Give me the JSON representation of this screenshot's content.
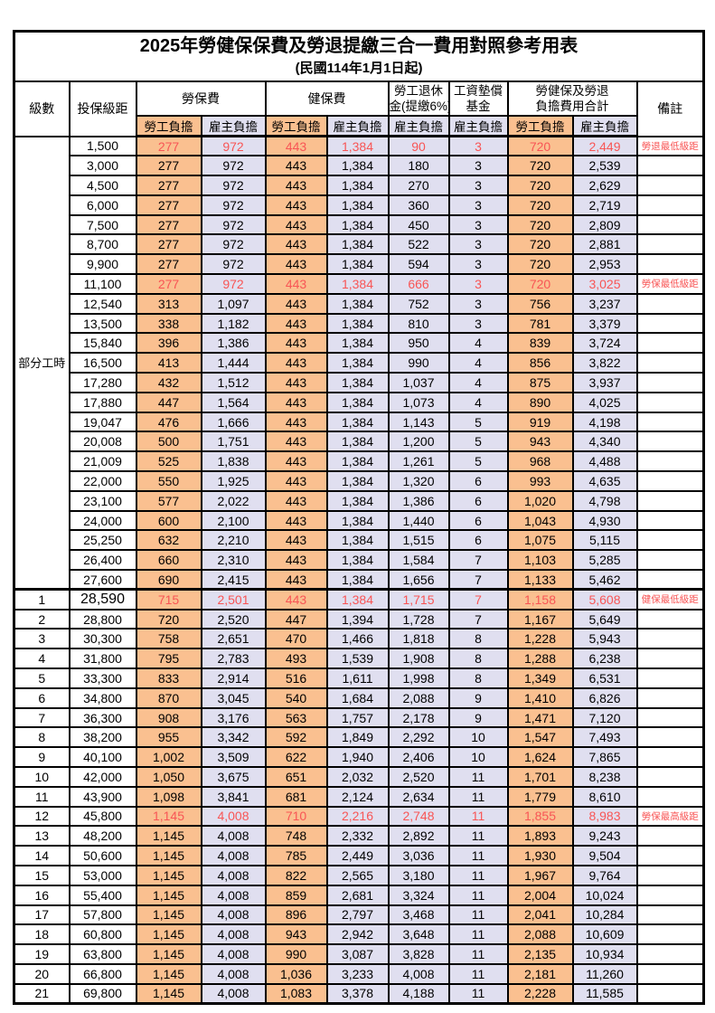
{
  "title": "2025年勞健保保費及勞退提繳三合一費用對照參考用表",
  "subtitle": "(民國114年1月1日起)",
  "colors": {
    "employee_bg": "#FAC090",
    "employer_bg": "#E0DFF0",
    "highlight_red": "#F85555",
    "border": "#000000"
  },
  "columns": {
    "level": "級數",
    "bracket": "投保級距",
    "labor": "勞保費",
    "health": "健保費",
    "pension_line1": "勞工退休",
    "pension_line2": "金(提繳6%)",
    "fund_line1": "工資墊償",
    "fund_line2": "基金",
    "total_line1": "勞健保及勞退",
    "total_line2": "負擔費用合計",
    "remark": "備註",
    "employee": "勞工負擔",
    "employer": "雇主負擔"
  },
  "part_time": {
    "label": "部分工時",
    "span": 23
  },
  "rows": [
    {
      "level": "",
      "wage": "1,500",
      "vals": [
        "277",
        "972",
        "443",
        "1,384",
        "90",
        "3",
        "720",
        "2,449"
      ],
      "note": "勞退最低級距",
      "red": true
    },
    {
      "level": "",
      "wage": "3,000",
      "vals": [
        "277",
        "972",
        "443",
        "1,384",
        "180",
        "3",
        "720",
        "2,539"
      ],
      "note": "",
      "red": false
    },
    {
      "level": "",
      "wage": "4,500",
      "vals": [
        "277",
        "972",
        "443",
        "1,384",
        "270",
        "3",
        "720",
        "2,629"
      ],
      "note": "",
      "red": false
    },
    {
      "level": "",
      "wage": "6,000",
      "vals": [
        "277",
        "972",
        "443",
        "1,384",
        "360",
        "3",
        "720",
        "2,719"
      ],
      "note": "",
      "red": false
    },
    {
      "level": "",
      "wage": "7,500",
      "vals": [
        "277",
        "972",
        "443",
        "1,384",
        "450",
        "3",
        "720",
        "2,809"
      ],
      "note": "",
      "red": false
    },
    {
      "level": "",
      "wage": "8,700",
      "vals": [
        "277",
        "972",
        "443",
        "1,384",
        "522",
        "3",
        "720",
        "2,881"
      ],
      "note": "",
      "red": false
    },
    {
      "level": "",
      "wage": "9,900",
      "vals": [
        "277",
        "972",
        "443",
        "1,384",
        "594",
        "3",
        "720",
        "2,953"
      ],
      "note": "",
      "red": false
    },
    {
      "level": "",
      "wage": "11,100",
      "vals": [
        "277",
        "972",
        "443",
        "1,384",
        "666",
        "3",
        "720",
        "3,025"
      ],
      "note": "勞保最低級距",
      "red": true
    },
    {
      "level": "",
      "wage": "12,540",
      "vals": [
        "313",
        "1,097",
        "443",
        "1,384",
        "752",
        "3",
        "756",
        "3,237"
      ],
      "note": "",
      "red": false
    },
    {
      "level": "",
      "wage": "13,500",
      "vals": [
        "338",
        "1,182",
        "443",
        "1,384",
        "810",
        "3",
        "781",
        "3,379"
      ],
      "note": "",
      "red": false
    },
    {
      "level": "",
      "wage": "15,840",
      "vals": [
        "396",
        "1,386",
        "443",
        "1,384",
        "950",
        "4",
        "839",
        "3,724"
      ],
      "note": "",
      "red": false
    },
    {
      "level": "",
      "wage": "16,500",
      "vals": [
        "413",
        "1,444",
        "443",
        "1,384",
        "990",
        "4",
        "856",
        "3,822"
      ],
      "note": "",
      "red": false
    },
    {
      "level": "",
      "wage": "17,280",
      "vals": [
        "432",
        "1,512",
        "443",
        "1,384",
        "1,037",
        "4",
        "875",
        "3,937"
      ],
      "note": "",
      "red": false
    },
    {
      "level": "",
      "wage": "17,880",
      "vals": [
        "447",
        "1,564",
        "443",
        "1,384",
        "1,073",
        "4",
        "890",
        "4,025"
      ],
      "note": "",
      "red": false
    },
    {
      "level": "",
      "wage": "19,047",
      "vals": [
        "476",
        "1,666",
        "443",
        "1,384",
        "1,143",
        "5",
        "919",
        "4,198"
      ],
      "note": "",
      "red": false
    },
    {
      "level": "",
      "wage": "20,008",
      "vals": [
        "500",
        "1,751",
        "443",
        "1,384",
        "1,200",
        "5",
        "943",
        "4,340"
      ],
      "note": "",
      "red": false
    },
    {
      "level": "",
      "wage": "21,009",
      "vals": [
        "525",
        "1,838",
        "443",
        "1,384",
        "1,261",
        "5",
        "968",
        "4,488"
      ],
      "note": "",
      "red": false
    },
    {
      "level": "",
      "wage": "22,000",
      "vals": [
        "550",
        "1,925",
        "443",
        "1,384",
        "1,320",
        "6",
        "993",
        "4,635"
      ],
      "note": "",
      "red": false
    },
    {
      "level": "",
      "wage": "23,100",
      "vals": [
        "577",
        "2,022",
        "443",
        "1,384",
        "1,386",
        "6",
        "1,020",
        "4,798"
      ],
      "note": "",
      "red": false
    },
    {
      "level": "",
      "wage": "24,000",
      "vals": [
        "600",
        "2,100",
        "443",
        "1,384",
        "1,440",
        "6",
        "1,043",
        "4,930"
      ],
      "note": "",
      "red": false
    },
    {
      "level": "",
      "wage": "25,250",
      "vals": [
        "632",
        "2,210",
        "443",
        "1,384",
        "1,515",
        "6",
        "1,075",
        "5,115"
      ],
      "note": "",
      "red": false
    },
    {
      "level": "",
      "wage": "26,400",
      "vals": [
        "660",
        "2,310",
        "443",
        "1,384",
        "1,584",
        "7",
        "1,103",
        "5,285"
      ],
      "note": "",
      "red": false
    },
    {
      "level": "",
      "wage": "27,600",
      "vals": [
        "690",
        "2,415",
        "443",
        "1,384",
        "1,656",
        "7",
        "1,133",
        "5,462"
      ],
      "note": "",
      "red": false
    },
    {
      "level": "1",
      "wage": "28,590",
      "vals": [
        "715",
        "2,501",
        "443",
        "1,384",
        "1,715",
        "7",
        "1,158",
        "5,608"
      ],
      "note": "健保最低級距",
      "red": true,
      "thick_top": true,
      "wage_large": true
    },
    {
      "level": "2",
      "wage": "28,800",
      "vals": [
        "720",
        "2,520",
        "447",
        "1,394",
        "1,728",
        "7",
        "1,167",
        "5,649"
      ],
      "note": "",
      "red": false
    },
    {
      "level": "3",
      "wage": "30,300",
      "vals": [
        "758",
        "2,651",
        "470",
        "1,466",
        "1,818",
        "8",
        "1,228",
        "5,943"
      ],
      "note": "",
      "red": false
    },
    {
      "level": "4",
      "wage": "31,800",
      "vals": [
        "795",
        "2,783",
        "493",
        "1,539",
        "1,908",
        "8",
        "1,288",
        "6,238"
      ],
      "note": "",
      "red": false
    },
    {
      "level": "5",
      "wage": "33,300",
      "vals": [
        "833",
        "2,914",
        "516",
        "1,611",
        "1,998",
        "8",
        "1,349",
        "6,531"
      ],
      "note": "",
      "red": false
    },
    {
      "level": "6",
      "wage": "34,800",
      "vals": [
        "870",
        "3,045",
        "540",
        "1,684",
        "2,088",
        "9",
        "1,410",
        "6,826"
      ],
      "note": "",
      "red": false
    },
    {
      "level": "7",
      "wage": "36,300",
      "vals": [
        "908",
        "3,176",
        "563",
        "1,757",
        "2,178",
        "9",
        "1,471",
        "7,120"
      ],
      "note": "",
      "red": false
    },
    {
      "level": "8",
      "wage": "38,200",
      "vals": [
        "955",
        "3,342",
        "592",
        "1,849",
        "2,292",
        "10",
        "1,547",
        "7,493"
      ],
      "note": "",
      "red": false
    },
    {
      "level": "9",
      "wage": "40,100",
      "vals": [
        "1,002",
        "3,509",
        "622",
        "1,940",
        "2,406",
        "10",
        "1,624",
        "7,865"
      ],
      "note": "",
      "red": false
    },
    {
      "level": "10",
      "wage": "42,000",
      "vals": [
        "1,050",
        "3,675",
        "651",
        "2,032",
        "2,520",
        "11",
        "1,701",
        "8,238"
      ],
      "note": "",
      "red": false
    },
    {
      "level": "11",
      "wage": "43,900",
      "vals": [
        "1,098",
        "3,841",
        "681",
        "2,124",
        "2,634",
        "11",
        "1,779",
        "8,610"
      ],
      "note": "",
      "red": false
    },
    {
      "level": "12",
      "wage": "45,800",
      "vals": [
        "1,145",
        "4,008",
        "710",
        "2,216",
        "2,748",
        "11",
        "1,855",
        "8,983"
      ],
      "note": "勞保最高級距",
      "red": true
    },
    {
      "level": "13",
      "wage": "48,200",
      "vals": [
        "1,145",
        "4,008",
        "748",
        "2,332",
        "2,892",
        "11",
        "1,893",
        "9,243"
      ],
      "note": "",
      "red": false
    },
    {
      "level": "14",
      "wage": "50,600",
      "vals": [
        "1,145",
        "4,008",
        "785",
        "2,449",
        "3,036",
        "11",
        "1,930",
        "9,504"
      ],
      "note": "",
      "red": false
    },
    {
      "level": "15",
      "wage": "53,000",
      "vals": [
        "1,145",
        "4,008",
        "822",
        "2,565",
        "3,180",
        "11",
        "1,967",
        "9,764"
      ],
      "note": "",
      "red": false
    },
    {
      "level": "16",
      "wage": "55,400",
      "vals": [
        "1,145",
        "4,008",
        "859",
        "2,681",
        "3,324",
        "11",
        "2,004",
        "10,024"
      ],
      "note": "",
      "red": false
    },
    {
      "level": "17",
      "wage": "57,800",
      "vals": [
        "1,145",
        "4,008",
        "896",
        "2,797",
        "3,468",
        "11",
        "2,041",
        "10,284"
      ],
      "note": "",
      "red": false
    },
    {
      "level": "18",
      "wage": "60,800",
      "vals": [
        "1,145",
        "4,008",
        "943",
        "2,942",
        "3,648",
        "11",
        "2,088",
        "10,609"
      ],
      "note": "",
      "red": false
    },
    {
      "level": "19",
      "wage": "63,800",
      "vals": [
        "1,145",
        "4,008",
        "990",
        "3,087",
        "3,828",
        "11",
        "2,135",
        "10,934"
      ],
      "note": "",
      "red": false
    },
    {
      "level": "20",
      "wage": "66,800",
      "vals": [
        "1,145",
        "4,008",
        "1,036",
        "3,233",
        "4,008",
        "11",
        "2,181",
        "11,260"
      ],
      "note": "",
      "red": false
    },
    {
      "level": "21",
      "wage": "69,800",
      "vals": [
        "1,145",
        "4,008",
        "1,083",
        "3,378",
        "4,188",
        "11",
        "2,228",
        "11,585"
      ],
      "note": "",
      "red": false
    }
  ]
}
